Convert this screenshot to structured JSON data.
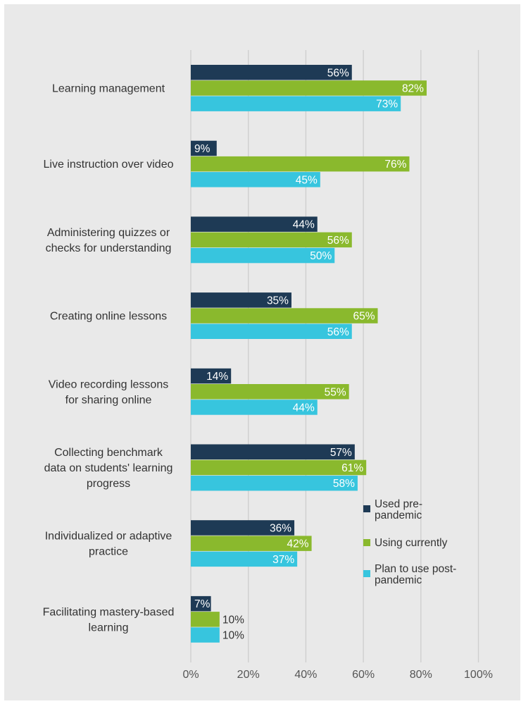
{
  "chart_data": {
    "type": "bar",
    "orientation": "horizontal",
    "categories": [
      [
        "Learning management"
      ],
      [
        "Live instruction over video"
      ],
      [
        "Administering quizzes or",
        "checks for understanding"
      ],
      [
        "Creating online lessons"
      ],
      [
        "Video recording lessons",
        "for sharing online"
      ],
      [
        "Collecting benchmark",
        "data on students' learning",
        "progress"
      ],
      [
        "Individualized or adaptive",
        "practice"
      ],
      [
        "Facilitating mastery-based",
        "learning"
      ]
    ],
    "series": [
      {
        "name": [
          "Used pre-",
          "pandemic"
        ],
        "color": "#1e3a55",
        "values": [
          56,
          9,
          44,
          35,
          14,
          57,
          36,
          7
        ]
      },
      {
        "name": [
          "Using currently"
        ],
        "color": "#8ab92d",
        "values": [
          82,
          76,
          56,
          65,
          55,
          61,
          42,
          10
        ]
      },
      {
        "name": [
          "Plan to use post-",
          "pandemic"
        ],
        "color": "#37c5de",
        "values": [
          73,
          45,
          50,
          56,
          44,
          58,
          37,
          10
        ]
      }
    ],
    "xlim": [
      0,
      100
    ],
    "xticks": [
      0,
      20,
      40,
      60,
      80,
      100
    ],
    "tick_suffix": "%",
    "value_suffix": "%",
    "grid": "vertical",
    "legend": "right"
  }
}
